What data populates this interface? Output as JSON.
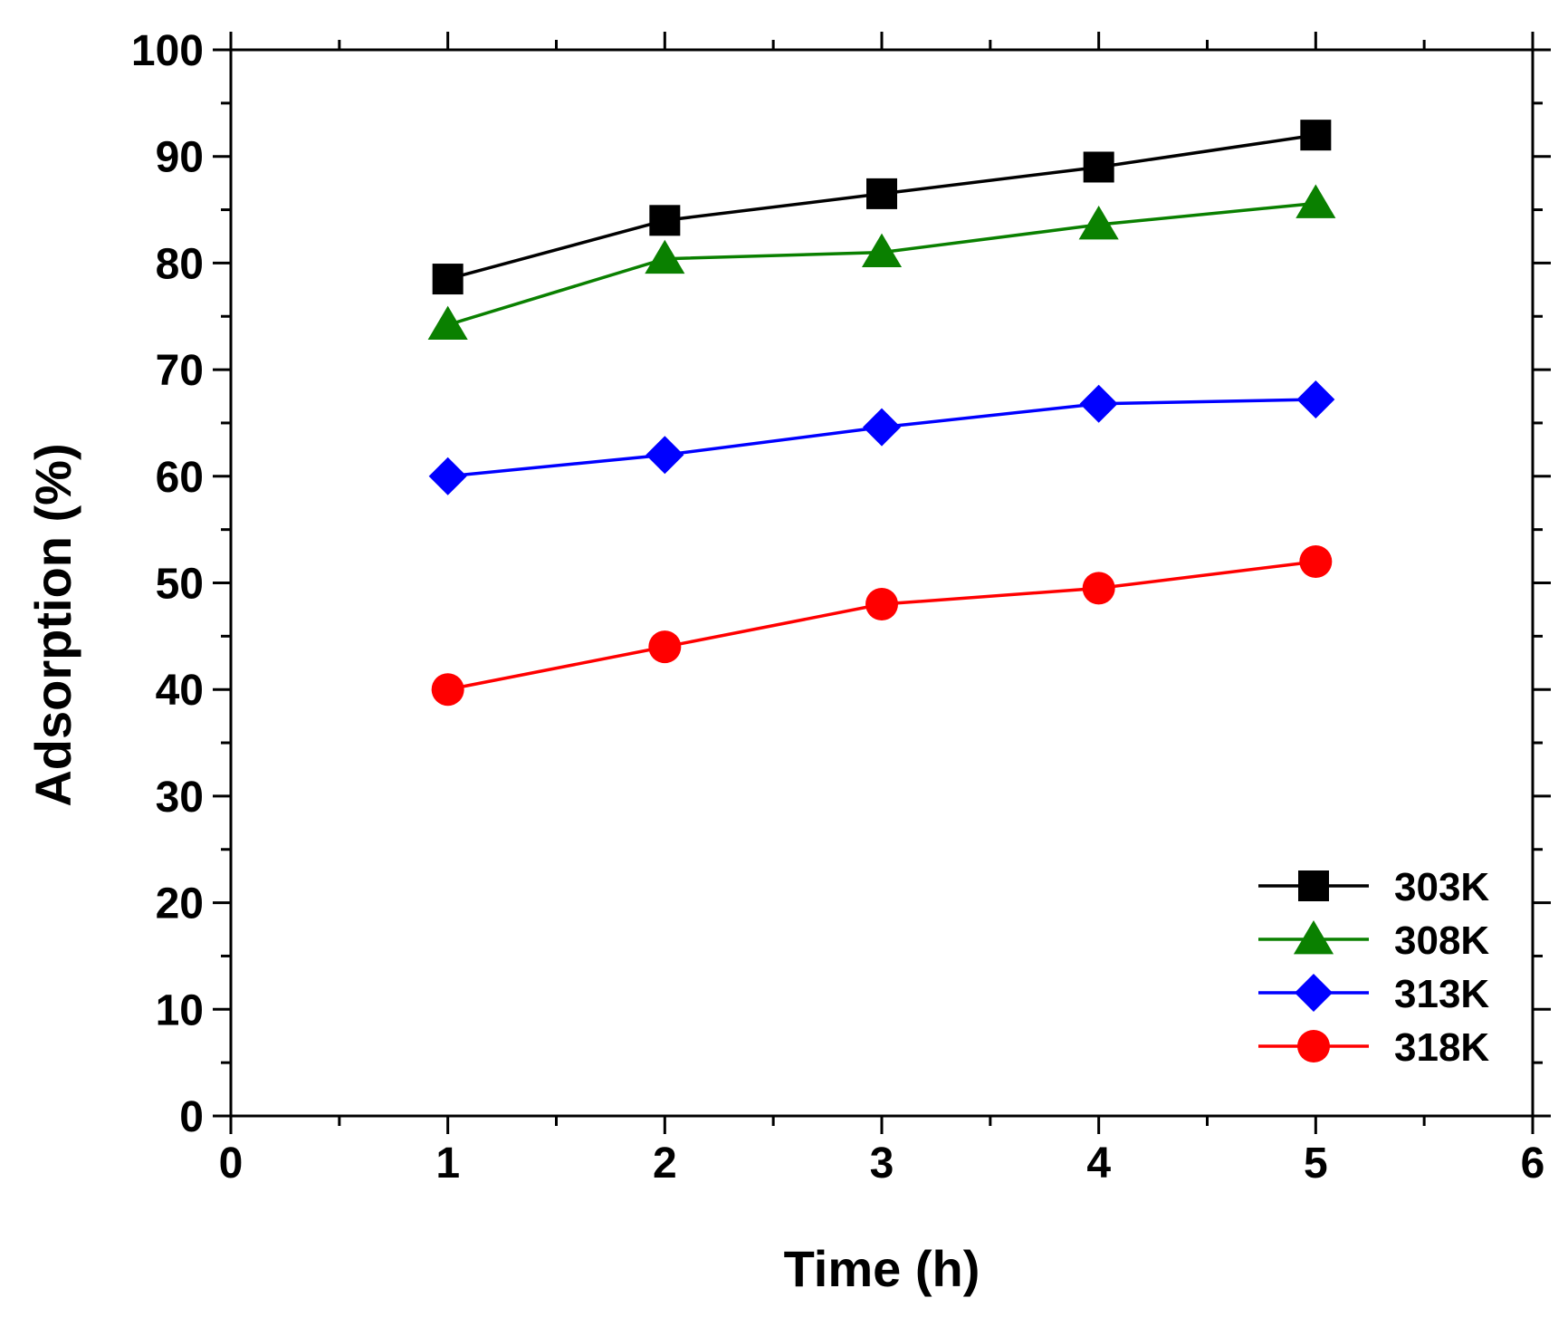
{
  "chart_data": {
    "type": "line",
    "title": "",
    "xlabel": "Time (h)",
    "ylabel": "Adsorption (%)",
    "xlim": [
      0,
      6
    ],
    "ylim": [
      0,
      100
    ],
    "xticks": [
      0,
      1,
      2,
      3,
      4,
      5,
      6
    ],
    "yticks": [
      0,
      10,
      20,
      30,
      40,
      50,
      60,
      70,
      80,
      90,
      100
    ],
    "grid": false,
    "legend_position": "bottom-right",
    "x": [
      1,
      2,
      3,
      4,
      5
    ],
    "series": [
      {
        "name": "303K",
        "marker": "square",
        "color": "#000000",
        "values": [
          78.5,
          84,
          86.5,
          89,
          92
        ]
      },
      {
        "name": "308K",
        "marker": "triangle",
        "color": "#0a8000",
        "values": [
          74.2,
          80.4,
          81,
          83.6,
          85.6
        ]
      },
      {
        "name": "313K",
        "marker": "diamond",
        "color": "#0000ff",
        "values": [
          60,
          62,
          64.6,
          66.8,
          67.2
        ]
      },
      {
        "name": "318K",
        "marker": "circle",
        "color": "#ff0000",
        "values": [
          40,
          44,
          48,
          49.5,
          52
        ]
      }
    ]
  }
}
